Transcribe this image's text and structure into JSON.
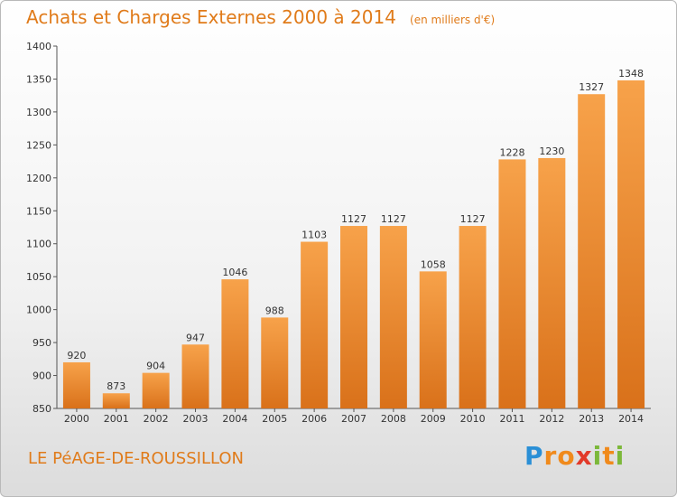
{
  "chart_data": {
    "type": "bar",
    "title": "Achats et Charges Externes 2000 à 2014",
    "subtitle": "(en milliers d'€)",
    "categories": [
      "2000",
      "2001",
      "2002",
      "2003",
      "2004",
      "2005",
      "2006",
      "2007",
      "2008",
      "2009",
      "2010",
      "2011",
      "2012",
      "2013",
      "2014"
    ],
    "values": [
      920,
      873,
      904,
      947,
      1046,
      988,
      1103,
      1127,
      1127,
      1058,
      1127,
      1228,
      1230,
      1327,
      1348
    ],
    "ylim": [
      850,
      1400
    ],
    "yticks": [
      850,
      900,
      950,
      1000,
      1050,
      1100,
      1150,
      1200,
      1250,
      1300,
      1350,
      1400
    ],
    "grid": false,
    "bar_color": "#f0962f"
  },
  "footer": {
    "town": "LE PéAGE-DE-ROUSSILLON",
    "logo_letters": [
      {
        "ch": "P",
        "color": "#2a8fd6"
      },
      {
        "ch": "r",
        "color": "#f08a1c"
      },
      {
        "ch": "o",
        "color": "#f08a1c"
      },
      {
        "ch": "x",
        "color": "#e23a2a"
      },
      {
        "ch": "i",
        "color": "#7cb83a"
      },
      {
        "ch": "t",
        "color": "#f08a1c"
      },
      {
        "ch": "i",
        "color": "#7cb83a"
      }
    ]
  }
}
